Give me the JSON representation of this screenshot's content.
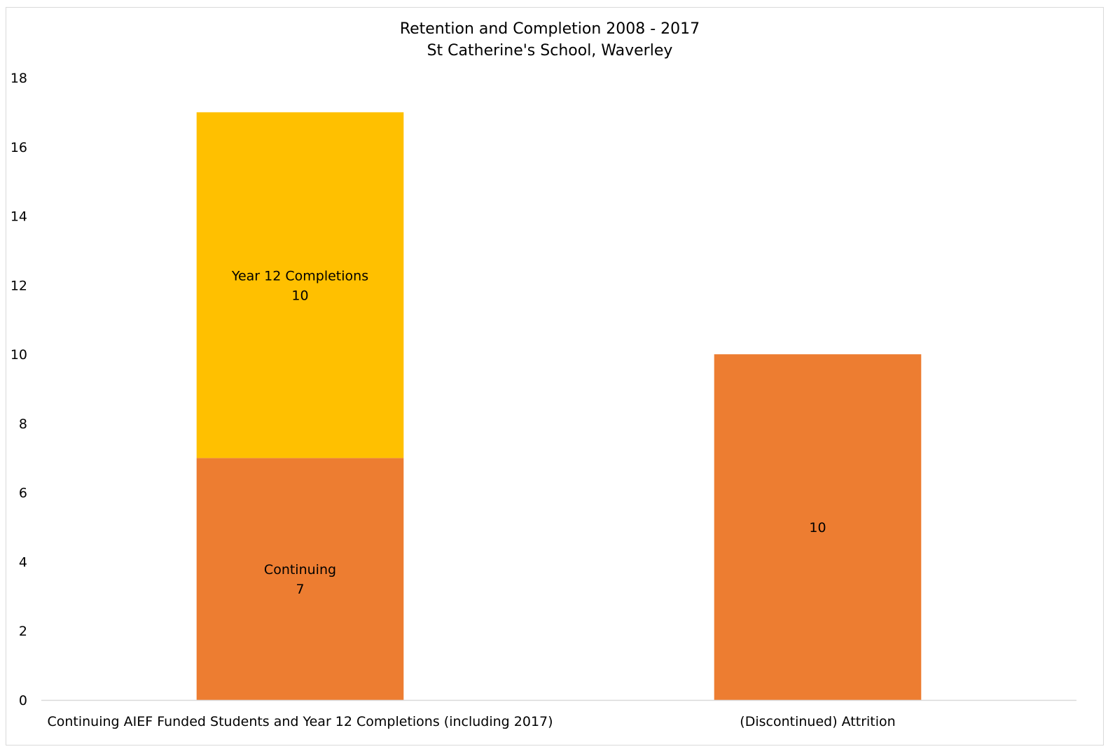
{
  "chart_data": {
    "type": "bar",
    "stacked": true,
    "title": "Retention and Completion 2008 - 2017",
    "subtitle": "St Catherine's School, Waverley",
    "categories": [
      "Continuing AIEF Funded Students and Year 12 Completions (including 2017)",
      "(Discontinued) Attrition"
    ],
    "series": [
      {
        "name": "Continuing",
        "values": [
          7,
          null
        ],
        "color": "#ED7D31"
      },
      {
        "name": "Year 12 Completions",
        "values": [
          10,
          null
        ],
        "color": "#FFC000"
      },
      {
        "name": "",
        "values": [
          null,
          10
        ],
        "color": "#ED7D31"
      }
    ],
    "data_labels": [
      {
        "category": 0,
        "series": 0,
        "text": "Continuing",
        "value": "7"
      },
      {
        "category": 0,
        "series": 1,
        "text": "Year 12 Completions",
        "value": "10"
      },
      {
        "category": 1,
        "series": 2,
        "text": "",
        "value": "10"
      }
    ],
    "y_ticks": [
      "0",
      "2",
      "4",
      "6",
      "8",
      "10",
      "12",
      "14",
      "16",
      "18"
    ],
    "ylim": [
      0,
      18
    ],
    "xlabel": "",
    "ylabel": "",
    "grid": false,
    "legend": "none",
    "axis_color": "#d9d9d9"
  }
}
